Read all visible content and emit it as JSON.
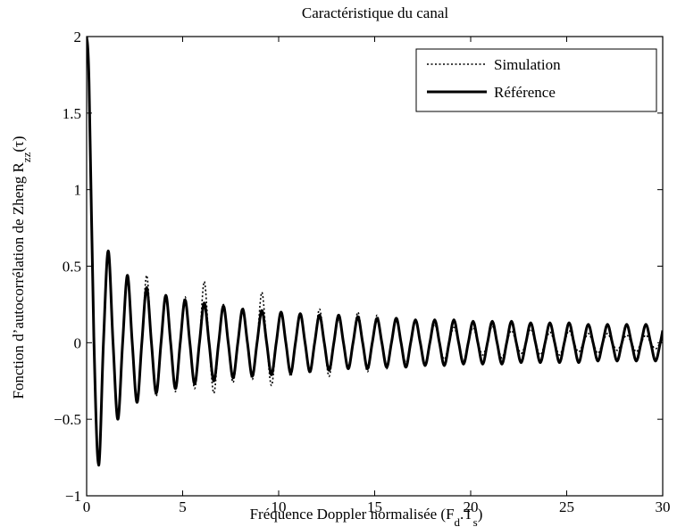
{
  "chart_data": {
    "type": "line",
    "title": "Caractéristique du canal",
    "xlabel": [
      "Fréquence Doppler normalisée (F",
      "d",
      ".T",
      "s",
      ")"
    ],
    "ylabel": [
      "Fonction d’autocorrélation de Zheng R",
      "zz",
      "(τ)"
    ],
    "xlim": [
      0,
      30
    ],
    "ylim": [
      -1,
      2
    ],
    "xticks": [
      0,
      5,
      10,
      15,
      20,
      25,
      30
    ],
    "yticks": [
      {
        "value": -1,
        "label": "−1"
      },
      {
        "value": -0.5,
        "label": "−0.5"
      },
      0,
      0.5,
      1,
      1.5,
      2
    ],
    "legend": "upper right",
    "x": [
      0,
      0.125,
      0.375,
      0.625,
      0.875,
      1.125,
      1.375,
      1.625,
      1.875,
      2.125,
      2.375,
      2.625,
      2.875,
      3.125,
      3.375,
      3.625,
      3.875,
      4.125,
      4.375,
      4.625,
      4.875,
      5.125,
      5.375,
      5.625,
      5.875,
      6.125,
      6.375,
      6.625,
      6.875,
      7.125,
      7.375,
      7.625,
      7.875,
      8.125,
      8.375,
      8.625,
      8.875,
      9.125,
      9.375,
      9.625,
      9.875,
      10.125,
      10.375,
      10.625,
      10.875,
      11.125,
      11.375,
      11.625,
      11.875,
      12.125,
      12.375,
      12.625,
      12.875,
      13.125,
      13.375,
      13.625,
      13.875,
      14.125,
      14.375,
      14.625,
      14.875,
      15.125,
      15.375,
      15.625,
      15.875,
      16.125,
      16.375,
      16.625,
      16.875,
      17.125,
      17.375,
      17.625,
      17.875,
      18.125,
      18.375,
      18.625,
      18.875,
      19.125,
      19.375,
      19.625,
      19.875,
      20.125,
      20.375,
      20.625,
      20.875,
      21.125,
      21.375,
      21.625,
      21.875,
      22.125,
      22.375,
      22.625,
      22.875,
      23.125,
      23.375,
      23.625,
      23.875,
      24.125,
      24.375,
      24.625,
      24.875,
      25.125,
      25.375,
      25.625,
      25.875,
      26.125,
      26.375,
      26.625,
      26.875,
      27.125,
      27.375,
      27.625,
      27.875,
      28.125,
      28.375,
      28.625,
      28.875,
      29.125,
      29.375,
      29.625,
      29.875,
      30
    ],
    "series": [
      {
        "name": "Simulation",
        "color": "#000000",
        "linestyle": "dotted",
        "values": [
          2,
          1.72,
          0.02,
          -0.78,
          0,
          0.57,
          0,
          -0.46,
          0,
          0.4,
          0,
          -0.37,
          0,
          0.44,
          0,
          -0.35,
          0,
          0.28,
          0,
          -0.32,
          0,
          0.3,
          0,
          -0.3,
          0,
          0.4,
          0,
          -0.33,
          0,
          0.25,
          0,
          -0.26,
          0,
          0.23,
          0,
          -0.24,
          0,
          0.33,
          0,
          -0.28,
          0,
          0.18,
          0,
          -0.22,
          0,
          0.19,
          0,
          -0.2,
          0,
          0.22,
          0,
          -0.22,
          0,
          0.15,
          0,
          -0.15,
          0,
          0.2,
          0,
          -0.19,
          0,
          0.18,
          0,
          -0.17,
          0,
          0.14,
          0,
          -0.13,
          0,
          0.15,
          0,
          -0.14,
          0,
          0.12,
          0,
          -0.11,
          0,
          0.1,
          0,
          -0.12,
          0,
          0.1,
          0,
          -0.08,
          0,
          0.11,
          0,
          -0.1,
          0,
          0.08,
          0,
          -0.07,
          0,
          0.09,
          0,
          -0.08,
          0,
          0.07,
          0,
          -0.08,
          0,
          0.08,
          0,
          -0.06,
          0,
          0.06,
          0,
          -0.07,
          0,
          0.06,
          0,
          -0.05,
          0,
          0.05,
          0,
          -0.06,
          0,
          0.05,
          0,
          -0.04,
          0,
          0.02
        ]
      },
      {
        "name": "Référence",
        "color": "#000000",
        "linestyle": "solid",
        "values": [
          2,
          1.7,
          0.04,
          -0.8,
          0,
          0.6,
          0,
          -0.5,
          0,
          0.44,
          0,
          -0.39,
          0,
          0.36,
          0,
          -0.33,
          0,
          0.31,
          0,
          -0.3,
          0,
          0.28,
          0,
          -0.27,
          0,
          0.26,
          0,
          -0.25,
          0,
          0.24,
          0,
          -0.23,
          0,
          0.22,
          0,
          -0.22,
          0,
          0.21,
          0,
          -0.21,
          0,
          0.2,
          0,
          -0.2,
          0,
          0.19,
          0,
          -0.19,
          0,
          0.18,
          0,
          -0.18,
          0,
          0.18,
          0,
          -0.17,
          0,
          0.17,
          0,
          -0.17,
          0,
          0.16,
          0,
          -0.16,
          0,
          0.16,
          0,
          -0.16,
          0,
          0.15,
          0,
          -0.15,
          0,
          0.15,
          0,
          -0.15,
          0,
          0.15,
          0,
          -0.14,
          0,
          0.14,
          0,
          -0.14,
          0,
          0.14,
          0,
          -0.14,
          0,
          0.14,
          0,
          -0.13,
          0,
          0.13,
          0,
          -0.13,
          0,
          0.13,
          0,
          -0.13,
          0,
          0.13,
          0,
          -0.13,
          0,
          0.12,
          0,
          -0.12,
          0,
          0.12,
          0,
          -0.12,
          0,
          0.12,
          0,
          -0.12,
          0,
          0.12,
          0,
          -0.12,
          0,
          0.08
        ]
      }
    ]
  }
}
